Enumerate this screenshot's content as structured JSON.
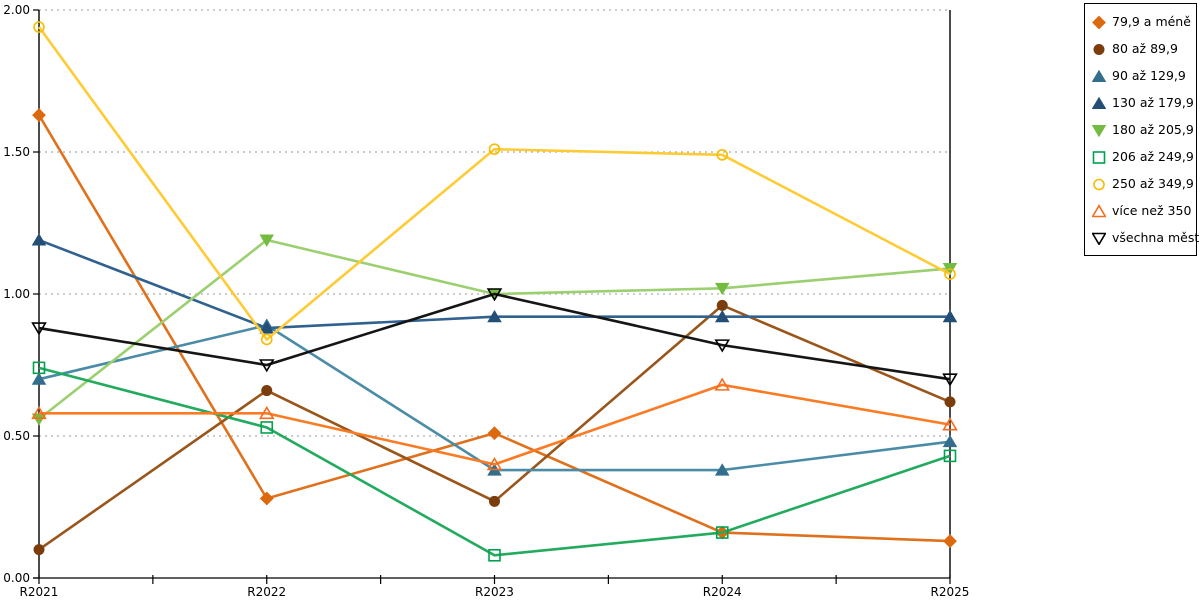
{
  "chart_data": {
    "type": "line",
    "title": "",
    "xlabel": "",
    "ylabel": "",
    "ylim": [
      0,
      2
    ],
    "y_ticks": [
      "0.00",
      "0.50",
      "1.00",
      "1.50",
      "2.00"
    ],
    "grid": "horizontal-dotted",
    "legend_position": "top-right-outside",
    "categories": [
      "R2021",
      "R2022",
      "R2023",
      "R2024",
      "R2025"
    ],
    "series": [
      {
        "name": "79,9 a méně",
        "marker": "diamond",
        "fill": "filled",
        "line_color": "#E0711C",
        "marker_color": "#DD690F",
        "values": [
          1.63,
          0.28,
          0.51,
          0.16,
          0.13
        ]
      },
      {
        "name": "80 až 89,9",
        "marker": "circle",
        "fill": "filled",
        "line_color": "#99551A",
        "marker_color": "#7C3D0D",
        "values": [
          0.1,
          0.66,
          0.27,
          0.96,
          0.62
        ]
      },
      {
        "name": "90 až 129,9",
        "marker": "triangle-up",
        "fill": "filled",
        "line_color": "#4A8BA6",
        "marker_color": "#336F8C",
        "values": [
          0.7,
          0.89,
          0.38,
          0.38,
          0.48
        ]
      },
      {
        "name": "130 až 179,9",
        "marker": "triangle-up",
        "fill": "filled",
        "line_color": "#30618F",
        "marker_color": "#234F77",
        "values": [
          1.19,
          0.88,
          0.92,
          0.92,
          0.92
        ]
      },
      {
        "name": "180 až 205,9",
        "marker": "triangle-down",
        "fill": "filled",
        "line_color": "#9BCF70",
        "marker_color": "#74BB41",
        "values": [
          0.56,
          1.19,
          1.0,
          1.02,
          1.09
        ]
      },
      {
        "name": "206 až 249,9",
        "marker": "square",
        "fill": "open",
        "line_color": "#22AA5E",
        "marker_color": "#00A150",
        "values": [
          0.74,
          0.53,
          0.08,
          0.16,
          0.43
        ]
      },
      {
        "name": "250 až 349,9",
        "marker": "circle",
        "fill": "open",
        "line_color": "#FFCB35",
        "marker_color": "#F8BC00",
        "values": [
          1.94,
          0.84,
          1.51,
          1.49,
          1.07
        ]
      },
      {
        "name": "více než 350",
        "marker": "triangle-up",
        "fill": "open",
        "line_color": "#FB7B24",
        "marker_color": "#F76B1C",
        "values": [
          0.58,
          0.58,
          0.4,
          0.68,
          0.54
        ]
      },
      {
        "name": "všechna města",
        "marker": "triangle-down",
        "fill": "open",
        "line_color": "#151515",
        "marker_color": "#000000",
        "values": [
          0.88,
          0.75,
          1.0,
          0.82,
          0.7
        ]
      }
    ]
  },
  "colors": {
    "grid": "#ACACAC",
    "axis": "#000000",
    "background": "#FFFFFF"
  }
}
